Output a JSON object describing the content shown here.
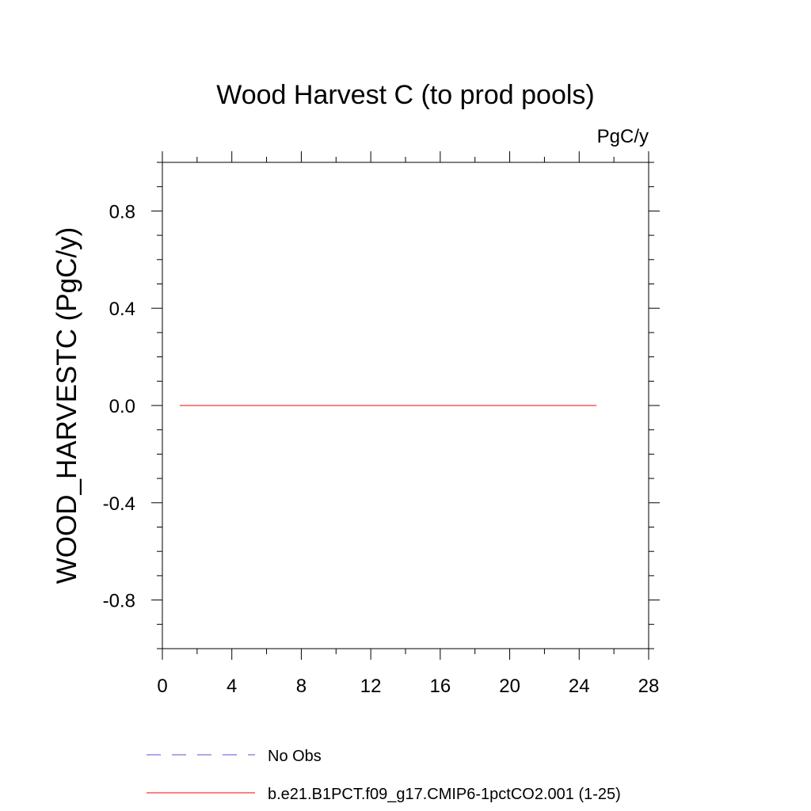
{
  "chart_data": {
    "type": "line",
    "title": "Wood Harvest C (to prod pools)",
    "units_label": "PgC/y",
    "ylabel": "WOOD_HARVESTC  (PgC/y)",
    "xlabel": "",
    "xlim": [
      0,
      28
    ],
    "ylim": [
      -1.0,
      1.0
    ],
    "x_ticks": [
      0,
      4,
      8,
      12,
      16,
      20,
      24,
      28
    ],
    "x_tick_labels": [
      "0",
      "4",
      "8",
      "12",
      "16",
      "20",
      "24",
      "28"
    ],
    "y_ticks": [
      -0.8,
      -0.4,
      0.0,
      0.4,
      0.8
    ],
    "y_tick_labels": [
      "-0.8",
      "-0.4",
      "0.0",
      "0.4",
      "0.8"
    ],
    "x_minor_step": 2,
    "y_minor_step": 0.1,
    "grid": false,
    "legend_position": "bottom",
    "series": [
      {
        "name": "No Obs",
        "color": "#5a50d8",
        "dash": "dashed",
        "x": [],
        "y": []
      },
      {
        "name": "b.e21.B1PCT.f09_g17.CMIP6-1pctCO2.001 (1-25)",
        "color": "#ff0000",
        "dash": "solid",
        "x": [
          1,
          2,
          3,
          4,
          5,
          6,
          7,
          8,
          9,
          10,
          11,
          12,
          13,
          14,
          15,
          16,
          17,
          18,
          19,
          20,
          21,
          22,
          23,
          24,
          25
        ],
        "y": [
          0,
          0,
          0,
          0,
          0,
          0,
          0,
          0,
          0,
          0,
          0,
          0,
          0,
          0,
          0,
          0,
          0,
          0,
          0,
          0,
          0,
          0,
          0,
          0,
          0
        ]
      }
    ]
  }
}
